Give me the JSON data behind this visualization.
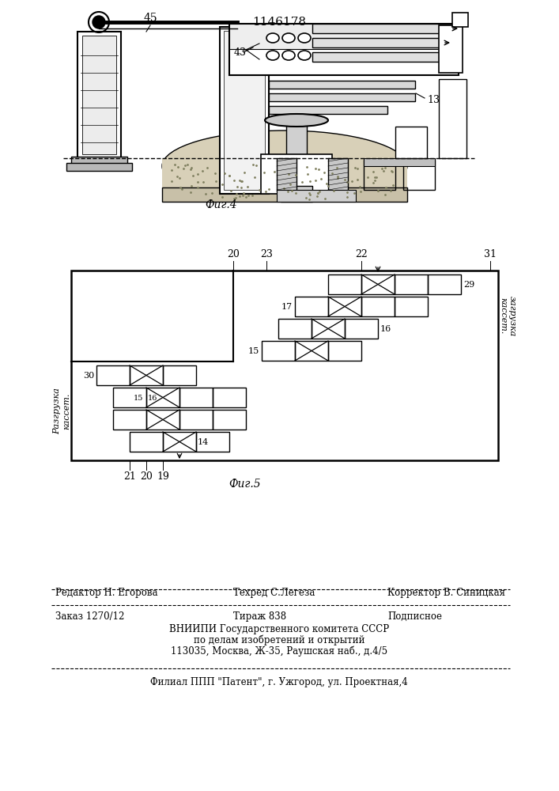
{
  "title": "1146178",
  "fig4_caption": "Фиг.4",
  "fig5_caption": "Фиг.5",
  "footer_line1_left": "Редактор Н. Егорова",
  "footer_line1_mid": "Техред С.Легеза",
  "footer_line1_right": "Корректор В. Синицкая",
  "footer_line2_left": "Заказ 1270/12",
  "footer_line2_mid": "Тираж 838",
  "footer_line2_right": "Подписное",
  "footer_line3": "ВНИИПИ Государственного комитета СССР",
  "footer_line4": "по делам изобретений и открытий",
  "footer_line5": "113035, Москва, Ж-35, Раушская наб., д.4/5",
  "footer_line6": "Филиал ППП \"Патент\", г. Ужгород, ул. Проектная,4",
  "label_45": "45",
  "label_43": "43",
  "label_13": "13",
  "label_20a": "20",
  "label_23": "23",
  "label_22": "22",
  "label_31": "31",
  "label_17": "17",
  "label_16": "16",
  "label_15a": "15",
  "label_29": "29",
  "label_30": "30",
  "label_15b": "15",
  "label_16b": "16",
  "label_14": "14",
  "label_21": "21",
  "label_20b": "20",
  "label_19": "19",
  "zagr": "загрузка\nкассет.",
  "razgr": "Разгрузка\nкассет."
}
